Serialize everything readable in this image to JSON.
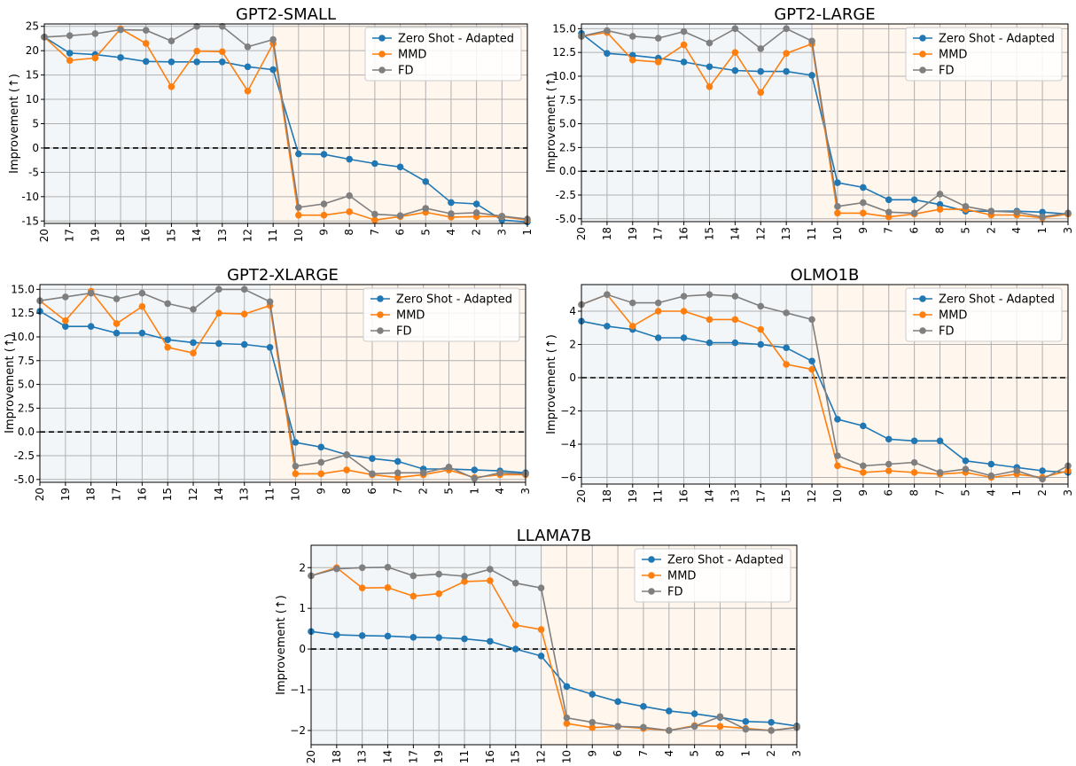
{
  "colors": {
    "series": [
      "#1f77b4",
      "#ff7f0e",
      "#7f7f7f"
    ],
    "region_left": "#f3f6f9",
    "region_right": "#fff6ee",
    "grid": "#b0b0b0",
    "zero_line": "#000000"
  },
  "chart_data": [
    {
      "type": "line",
      "title": "GPT2-SMALL",
      "xlabel": "",
      "ylabel": "Improvement (↑)",
      "categories": [
        "20",
        "17",
        "19",
        "18",
        "16",
        "15",
        "14",
        "13",
        "12",
        "11",
        "10",
        "9",
        "8",
        "7",
        "6",
        "5",
        "4",
        "2",
        "3",
        "1"
      ],
      "split_after_index": 9,
      "ylim": [
        -15.5,
        25.5
      ],
      "yticks": [
        -15,
        -10,
        -5,
        0,
        5,
        10,
        15,
        20,
        25
      ],
      "yticklabels": [
        "-15",
        "-10",
        "-5",
        "0",
        "5",
        "10",
        "15",
        "20",
        "25"
      ],
      "legend": "top-right",
      "series": [
        {
          "name": "Zero Shot - Adapted",
          "values": [
            22.8,
            19.5,
            19.2,
            18.6,
            17.8,
            17.7,
            17.7,
            17.7,
            16.7,
            16.1,
            -1.2,
            -1.3,
            -2.3,
            -3.2,
            -3.9,
            -6.9,
            -11.2,
            -11.5,
            -14.8,
            -15.2
          ]
        },
        {
          "name": "MMD",
          "values": [
            22.8,
            18.0,
            18.5,
            24.5,
            21.5,
            12.6,
            19.9,
            19.8,
            11.7,
            21.5,
            -13.8,
            -13.8,
            -13.1,
            -14.8,
            -14.1,
            -13.2,
            -14.2,
            -14.1,
            -14.1,
            -14.8
          ]
        },
        {
          "name": "FD",
          "values": [
            22.8,
            23.1,
            23.5,
            24.3,
            24.2,
            22.0,
            25.0,
            25.0,
            20.8,
            22.3,
            -12.2,
            -11.5,
            -9.8,
            -13.6,
            -13.9,
            -12.4,
            -13.5,
            -13.3,
            -14.0,
            -14.6
          ]
        }
      ]
    },
    {
      "type": "line",
      "title": "GPT2-LARGE",
      "xlabel": "",
      "ylabel": "Improvement (↑)",
      "categories": [
        "20",
        "18",
        "19",
        "17",
        "16",
        "15",
        "14",
        "12",
        "13",
        "11",
        "10",
        "9",
        "7",
        "6",
        "8",
        "5",
        "2",
        "4",
        "1",
        "3"
      ],
      "split_after_index": 9,
      "ylim": [
        -5.3,
        15.5
      ],
      "yticks": [
        -5.0,
        -2.5,
        0.0,
        2.5,
        5.0,
        7.5,
        10.0,
        12.5,
        15.0
      ],
      "yticklabels": [
        "-5.0",
        "-2.5",
        "0.0",
        "2.5",
        "5.0",
        "7.5",
        "10.0",
        "12.5",
        "15.0"
      ],
      "legend": "top-right",
      "series": [
        {
          "name": "Zero Shot - Adapted",
          "values": [
            14.5,
            12.4,
            12.2,
            11.9,
            11.5,
            11.0,
            10.6,
            10.5,
            10.5,
            10.1,
            -1.2,
            -1.7,
            -3.0,
            -3.0,
            -3.5,
            -4.2,
            -4.2,
            -4.2,
            -4.3,
            -4.5
          ]
        },
        {
          "name": "MMD",
          "values": [
            14.2,
            14.6,
            11.7,
            11.5,
            13.3,
            8.9,
            12.5,
            8.3,
            12.4,
            13.4,
            -4.4,
            -4.4,
            -4.8,
            -4.5,
            -4.0,
            -4.0,
            -4.6,
            -4.6,
            -4.9,
            -4.5
          ]
        },
        {
          "name": "FD",
          "values": [
            14.2,
            14.8,
            14.2,
            14.0,
            14.7,
            13.5,
            15.0,
            12.9,
            15.0,
            13.7,
            -3.7,
            -3.3,
            -4.3,
            -4.4,
            -2.4,
            -3.7,
            -4.2,
            -4.3,
            -4.8,
            -4.4
          ]
        }
      ]
    },
    {
      "type": "line",
      "title": "GPT2-XLARGE",
      "xlabel": "",
      "ylabel": "Improvement (↑)",
      "categories": [
        "20",
        "19",
        "18",
        "17",
        "16",
        "15",
        "12",
        "14",
        "13",
        "11",
        "10",
        "9",
        "8",
        "6",
        "7",
        "2",
        "5",
        "1",
        "4",
        "3"
      ],
      "split_after_index": 9,
      "ylim": [
        -5.3,
        15.5
      ],
      "yticks": [
        -5.0,
        -2.5,
        0.0,
        2.5,
        5.0,
        7.5,
        10.0,
        12.5,
        15.0
      ],
      "yticklabels": [
        "-5.0",
        "-2.5",
        "0.0",
        "2.5",
        "5.0",
        "7.5",
        "10.0",
        "12.5",
        "15.0"
      ],
      "legend": "top-right",
      "series": [
        {
          "name": "Zero Shot - Adapted",
          "values": [
            12.7,
            11.1,
            11.1,
            10.4,
            10.4,
            9.7,
            9.4,
            9.3,
            9.2,
            8.9,
            -1.1,
            -1.6,
            -2.4,
            -2.8,
            -3.1,
            -3.9,
            -3.9,
            -4.0,
            -4.1,
            -4.3
          ]
        },
        {
          "name": "MMD",
          "values": [
            13.8,
            11.7,
            14.8,
            11.4,
            13.2,
            8.9,
            8.3,
            12.5,
            12.4,
            13.3,
            -4.4,
            -4.4,
            -4.0,
            -4.5,
            -4.8,
            -4.5,
            -4.0,
            -4.8,
            -4.5,
            -4.5
          ]
        },
        {
          "name": "FD",
          "values": [
            13.8,
            14.2,
            14.6,
            14.0,
            14.6,
            13.5,
            12.9,
            15.0,
            15.0,
            13.7,
            -3.6,
            -3.2,
            -2.4,
            -4.4,
            -4.3,
            -4.3,
            -3.7,
            -4.9,
            -4.3,
            -4.4
          ]
        }
      ]
    },
    {
      "type": "line",
      "title": "OLMO1B",
      "xlabel": "",
      "ylabel": "Improvement (↑)",
      "categories": [
        "20",
        "18",
        "19",
        "11",
        "16",
        "14",
        "13",
        "17",
        "15",
        "12",
        "10",
        "9",
        "6",
        "8",
        "7",
        "5",
        "4",
        "1",
        "2",
        "3"
      ],
      "split_after_index": 9,
      "ylim": [
        -6.4,
        5.6
      ],
      "yticks": [
        -6,
        -4,
        -2,
        0,
        2,
        4
      ],
      "yticklabels": [
        "−6",
        "−4",
        "−2",
        "0",
        "2",
        "4"
      ],
      "legend": "top-right",
      "series": [
        {
          "name": "Zero Shot - Adapted",
          "values": [
            3.4,
            3.1,
            2.9,
            2.4,
            2.4,
            2.1,
            2.1,
            2.0,
            1.8,
            1.0,
            -2.5,
            -2.9,
            -3.7,
            -3.8,
            -3.8,
            -5.0,
            -5.2,
            -5.4,
            -5.6,
            -5.7
          ]
        },
        {
          "name": "MMD",
          "values": [
            4.4,
            5.0,
            3.1,
            4.0,
            4.0,
            3.5,
            3.5,
            2.9,
            0.8,
            0.5,
            -5.3,
            -5.7,
            -5.6,
            -5.7,
            -5.8,
            -5.7,
            -6.0,
            -5.8,
            -6.0,
            -5.6
          ]
        },
        {
          "name": "FD",
          "values": [
            4.4,
            5.0,
            4.5,
            4.5,
            4.9,
            5.0,
            4.9,
            4.3,
            3.9,
            3.5,
            -4.7,
            -5.3,
            -5.2,
            -5.1,
            -5.7,
            -5.5,
            -5.9,
            -5.6,
            -6.1,
            -5.3
          ]
        }
      ]
    },
    {
      "type": "line",
      "title": "LLAMA7B",
      "xlabel": "",
      "ylabel": "Improvement (↑)",
      "categories": [
        "20",
        "18",
        "13",
        "14",
        "17",
        "19",
        "11",
        "16",
        "15",
        "12",
        "10",
        "9",
        "6",
        "7",
        "4",
        "5",
        "8",
        "1",
        "2",
        "3"
      ],
      "split_after_index": 9,
      "ylim": [
        -2.35,
        2.55
      ],
      "yticks": [
        -2,
        -1,
        0,
        1,
        2
      ],
      "yticklabels": [
        "−2",
        "−1",
        "0",
        "1",
        "2"
      ],
      "legend": "top-right",
      "series": [
        {
          "name": "Zero Shot - Adapted",
          "values": [
            0.43,
            0.35,
            0.33,
            0.32,
            0.29,
            0.28,
            0.25,
            0.19,
            0.0,
            -0.17,
            -0.92,
            -1.11,
            -1.29,
            -1.41,
            -1.52,
            -1.59,
            -1.68,
            -1.78,
            -1.8,
            -1.89
          ]
        },
        {
          "name": "MMD",
          "values": [
            1.8,
            2.0,
            1.5,
            1.51,
            1.3,
            1.36,
            1.66,
            1.68,
            0.59,
            0.48,
            -1.83,
            -1.93,
            -1.9,
            -1.95,
            -2.0,
            -1.88,
            -1.9,
            -1.95,
            -2.0,
            -1.92
          ]
        },
        {
          "name": "FD",
          "values": [
            1.8,
            1.97,
            2.0,
            2.01,
            1.8,
            1.84,
            1.79,
            1.96,
            1.62,
            1.5,
            -1.69,
            -1.8,
            -1.9,
            -1.92,
            -2.0,
            -1.9,
            -1.66,
            -1.97,
            -2.0,
            -1.93
          ]
        }
      ]
    }
  ]
}
